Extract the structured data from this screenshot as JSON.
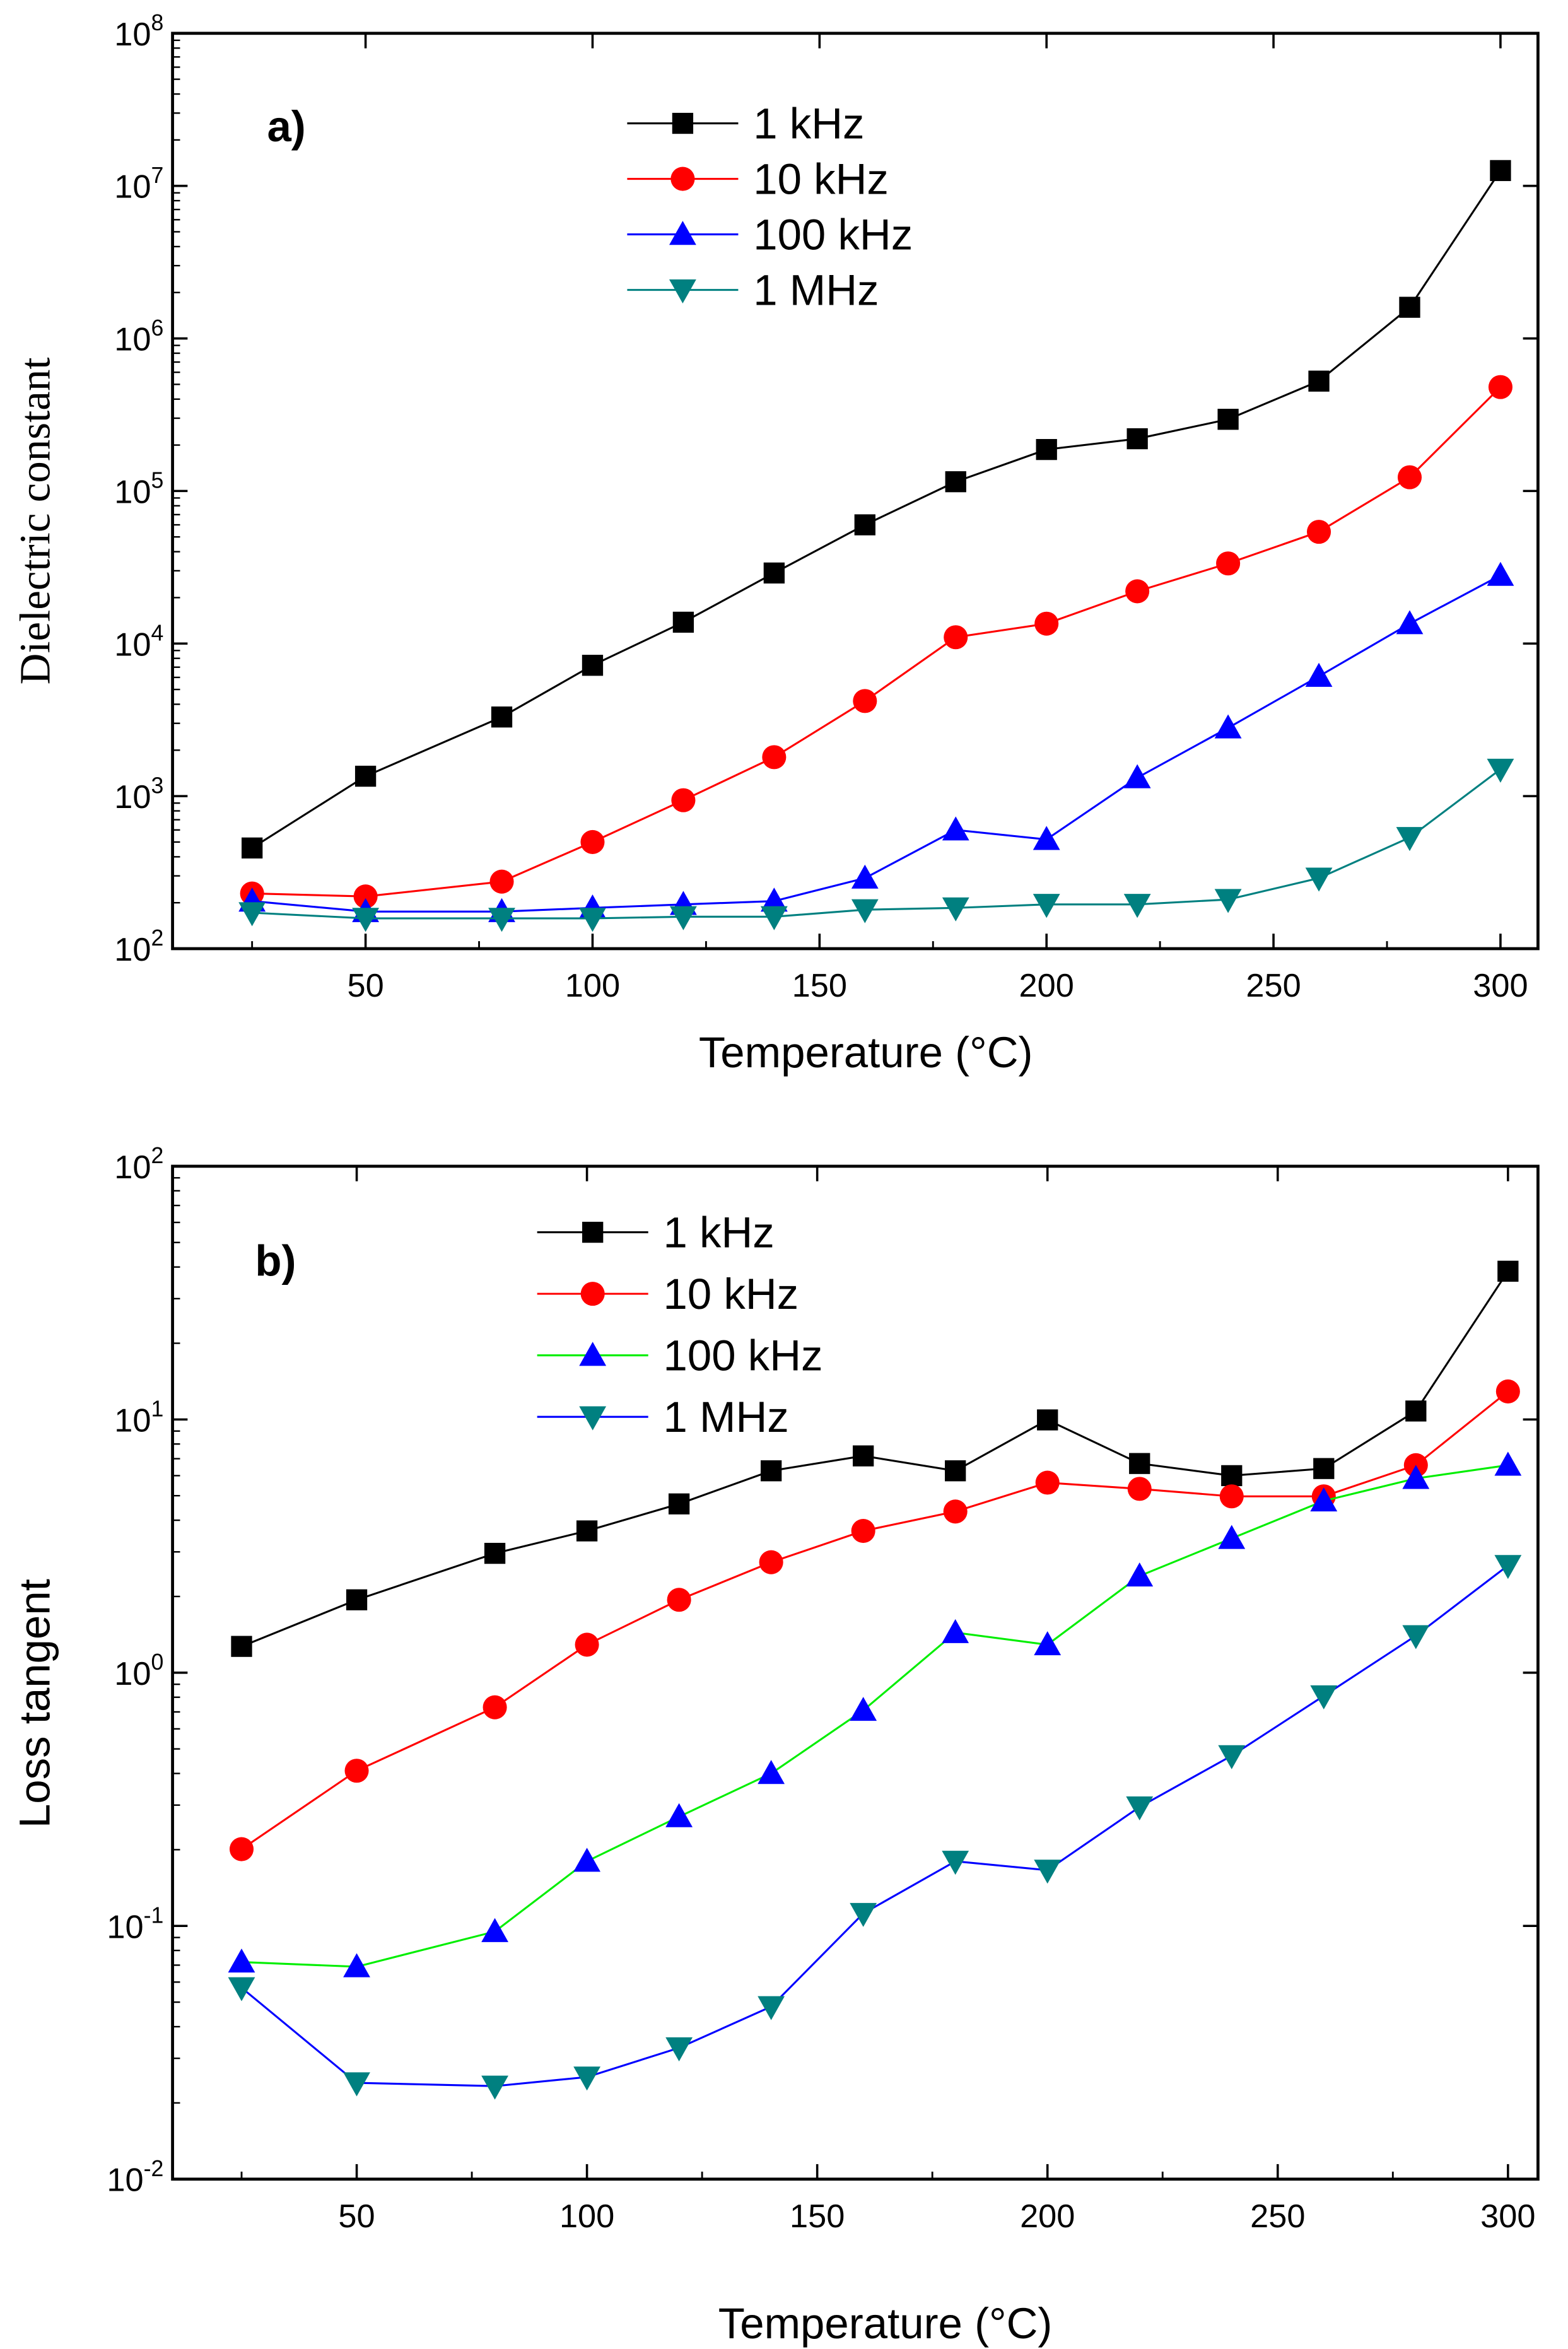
{
  "chart_data": [
    {
      "type": "line",
      "panel_label": "a)",
      "xlabel": "Temperature (°C)",
      "ylabel": "Dielectric constant",
      "yscale": "log",
      "xlim": [
        5,
        308
      ],
      "ylim": [
        100,
        100000000
      ],
      "xticks": [
        50,
        100,
        150,
        200,
        250,
        300
      ],
      "yticks": [
        {
          "v": 100,
          "base": "10",
          "exp": "2"
        },
        {
          "v": 1000,
          "base": "10",
          "exp": "3"
        },
        {
          "v": 10000,
          "base": "10",
          "exp": "4"
        },
        {
          "v": 100000,
          "base": "10",
          "exp": "5"
        },
        {
          "v": 1000000,
          "base": "10",
          "exp": "6"
        },
        {
          "v": 10000000,
          "base": "10",
          "exp": "7"
        },
        {
          "v": 100000000,
          "base": "10",
          "exp": "8"
        }
      ],
      "legend_position": "top-center",
      "x": [
        25,
        50,
        80,
        100,
        120,
        140,
        160,
        180,
        200,
        220,
        240,
        260,
        280,
        300
      ],
      "series": [
        {
          "name": "1 kHz",
          "line_color": "#000000",
          "marker_color": "#000000",
          "marker": "square",
          "values": [
            457,
            1350,
            3300,
            7200,
            13800,
            29000,
            60000,
            115000,
            187000,
            220000,
            295000,
            525000,
            1600000,
            12600000
          ]
        },
        {
          "name": "10 kHz",
          "line_color": "#ff0000",
          "marker_color": "#ff0000",
          "marker": "circle",
          "values": [
            230,
            220,
            275,
            500,
            940,
            1800,
            4200,
            11000,
            13500,
            22000,
            33500,
            54000,
            123000,
            480000
          ]
        },
        {
          "name": "100 kHz",
          "line_color": "#0000ff",
          "marker_color": "#0000ff",
          "marker": "triangle-up",
          "values": [
            205,
            175,
            175,
            185,
            195,
            205,
            290,
            600,
            520,
            1320,
            2800,
            6100,
            13500,
            28000
          ]
        },
        {
          "name": "1 MHz",
          "line_color": "#008080",
          "marker_color": "#008080",
          "marker": "triangle-down",
          "values": [
            172,
            158,
            158,
            158,
            162,
            162,
            180,
            185,
            195,
            195,
            210,
            290,
            535,
            1500
          ]
        }
      ]
    },
    {
      "type": "line",
      "panel_label": "b)",
      "xlabel": "Temperature (°C)",
      "ylabel": "Loss tangent",
      "yscale": "log",
      "xlim": [
        5,
        308
      ],
      "ylim": [
        0.01,
        100
      ],
      "xticks": [
        50,
        100,
        150,
        200,
        250,
        300
      ],
      "yticks": [
        {
          "v": 0.01,
          "base": "10",
          "exp": "-2"
        },
        {
          "v": 0.1,
          "base": "10",
          "exp": "-1"
        },
        {
          "v": 1,
          "base": "10",
          "exp": "0"
        },
        {
          "v": 10,
          "base": "10",
          "exp": "1"
        },
        {
          "v": 100,
          "base": "10",
          "exp": "2"
        }
      ],
      "legend_position": "top-left",
      "x": [
        25,
        50,
        80,
        100,
        120,
        140,
        160,
        180,
        200,
        220,
        240,
        260,
        280,
        300
      ],
      "series": [
        {
          "name": "1 kHz",
          "line_color": "#000000",
          "marker_color": "#000000",
          "marker": "square",
          "values": [
            1.27,
            1.94,
            2.96,
            3.63,
            4.64,
            6.27,
            7.18,
            6.27,
            9.96,
            6.7,
            6.0,
            6.4,
            10.8,
            38.5
          ]
        },
        {
          "name": "10 kHz",
          "line_color": "#ff0000",
          "marker_color": "#ff0000",
          "marker": "circle",
          "values": [
            0.201,
            0.41,
            0.73,
            1.29,
            1.94,
            2.73,
            3.63,
            4.33,
            5.63,
            5.32,
            4.97,
            4.97,
            6.6,
            12.9
          ]
        },
        {
          "name": "100 kHz",
          "line_color": "#00ee00",
          "marker_color": "#0000ff",
          "marker": "triangle-up",
          "values": [
            0.072,
            0.069,
            0.095,
            0.18,
            0.27,
            0.4,
            0.71,
            1.44,
            1.29,
            2.41,
            3.39,
            4.77,
            5.85,
            6.6
          ]
        },
        {
          "name": "1 MHz",
          "line_color": "#0000ff",
          "marker_color": "#008080",
          "marker": "triangle-down",
          "values": [
            0.057,
            0.024,
            0.0233,
            0.0253,
            0.033,
            0.048,
            0.112,
            0.18,
            0.166,
            0.295,
            0.47,
            0.81,
            1.4,
            2.65
          ]
        }
      ]
    }
  ]
}
